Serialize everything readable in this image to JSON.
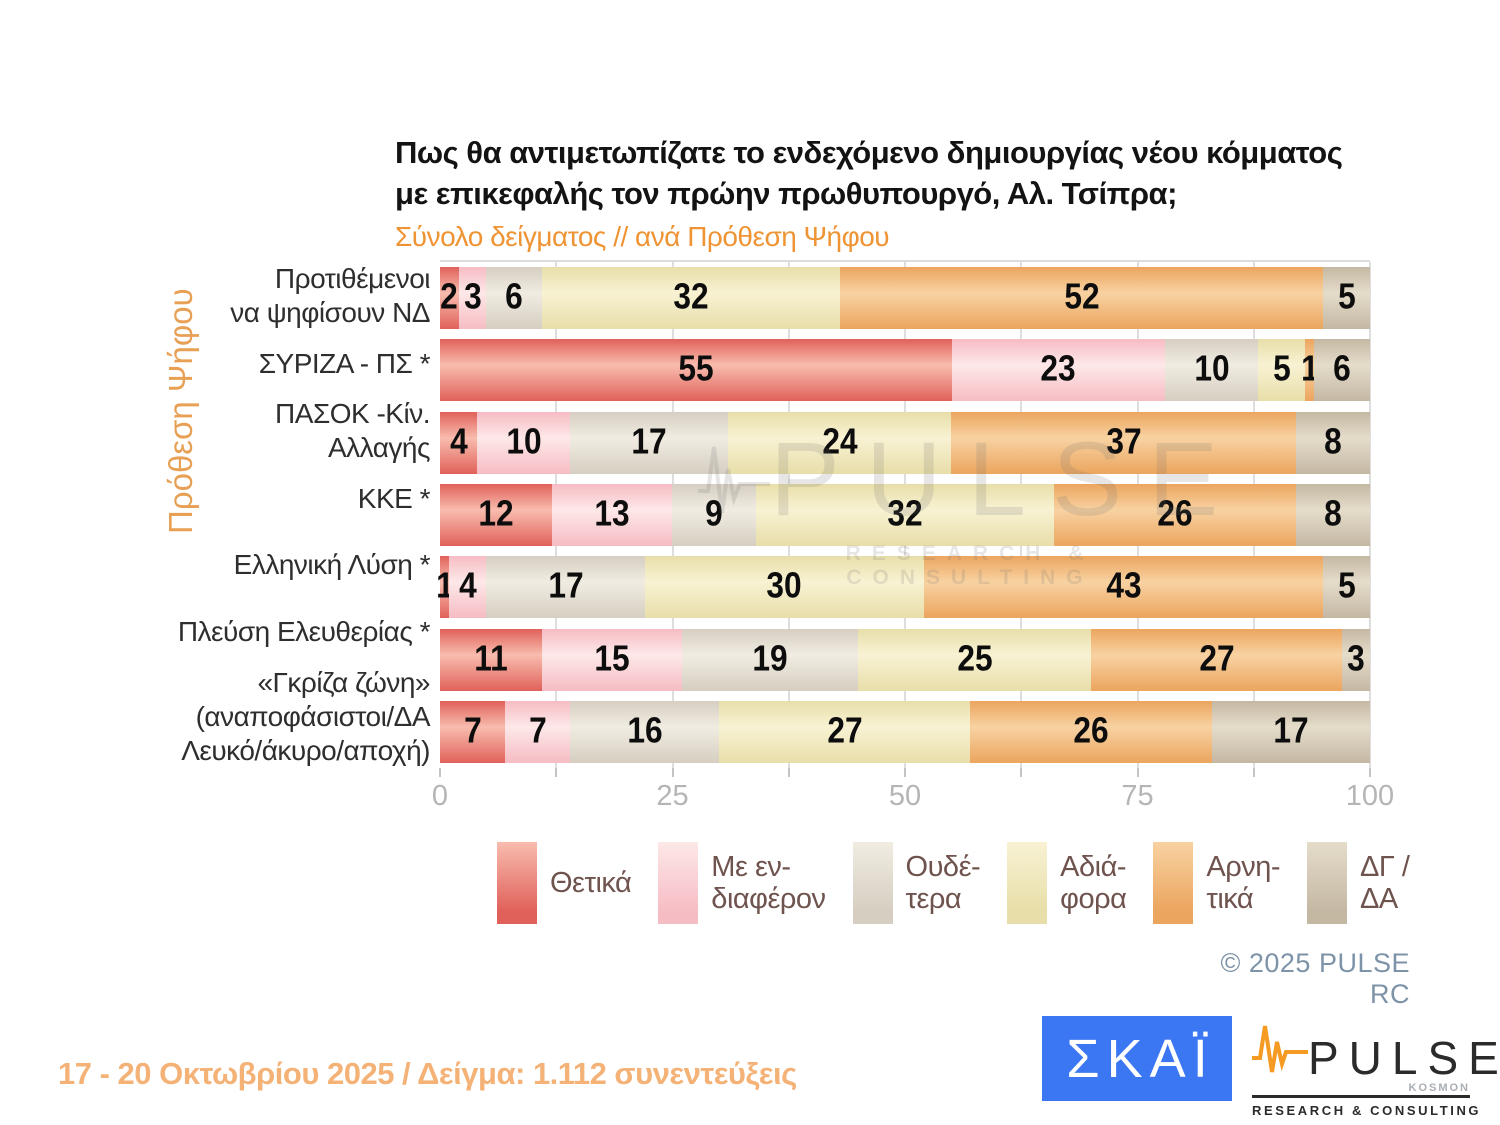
{
  "title": {
    "line1": "Πως θα αντιμετωπίζατε το ενδεχόμενο δημιουργίας νέου κόμματος",
    "line2": "με επικεφαλής τον πρώην πρωθυπουργό, Αλ. Τσίπρα;",
    "subtitle": "Σύνολο δείγματος // ανά Πρόθεση Ψήφου"
  },
  "y_axis_label": "Πρόθεση Ψήφου",
  "chart_data": {
    "type": "bar",
    "orientation": "horizontal-stacked",
    "xlim": [
      0,
      100
    ],
    "x_ticks": [
      0,
      25,
      50,
      75,
      100
    ],
    "gridline_step": 12.5,
    "legend_position": "bottom",
    "categories": [
      "Προτιθέμενοι\nνα ψηφίσουν ΝΔ",
      "ΣΥΡΙΖΑ - ΠΣ *",
      "ΠΑΣΟΚ -Κίν.\nΑλλαγής",
      "ΚΚΕ *",
      "Ελληνική Λύση *",
      "Πλεύση Ελευθερίας *",
      "«Γκρίζα ζώνη»\n(αναποφάσιστοι/ΔΑ\nΛευκό/άκυρο/αποχή)"
    ],
    "series": [
      {
        "name": "Θετικά",
        "legend_label": "Θετικά",
        "color_dark": "#e0615a",
        "color_light": "#f8bcae",
        "values": [
          2,
          55,
          4,
          12,
          1,
          11,
          7
        ]
      },
      {
        "name": "Με ενδιαφέρον",
        "legend_label": "Με εν-\nδιαφέρον",
        "color_dark": "#f6bcc4",
        "color_light": "#fde8e8",
        "values": [
          3,
          23,
          10,
          13,
          4,
          15,
          7
        ]
      },
      {
        "name": "Ουδέτερα",
        "legend_label": "Ουδέ-\nτερα",
        "color_dark": "#d5cec1",
        "color_light": "#f1ece2",
        "values": [
          6,
          10,
          17,
          9,
          17,
          19,
          16
        ]
      },
      {
        "name": "Αδιάφορα",
        "legend_label": "Αδιά-\nφορα",
        "color_dark": "#e8dea9",
        "color_light": "#f8f2d3",
        "values": [
          32,
          5,
          24,
          32,
          30,
          25,
          27
        ]
      },
      {
        "name": "Αρνητικά",
        "legend_label": "Αρνη-\nτικά",
        "color_dark": "#eba55e",
        "color_light": "#f8d2a2",
        "values": [
          52,
          1,
          37,
          26,
          43,
          27,
          26
        ]
      },
      {
        "name": "ΔΓ / ΔΑ",
        "legend_label": "ΔΓ /\nΔΑ",
        "color_dark": "#c4b8a3",
        "color_light": "#e5dcca",
        "values": [
          5,
          6,
          8,
          8,
          5,
          3,
          17
        ]
      }
    ]
  },
  "watermark": {
    "word": "PULSE",
    "sub": "RESEARCH & CONSULTING"
  },
  "copyright": "©  2025  PULSE RC",
  "survey_info": "17 - 20 Οκτωβρίου 2025  /  Δείγμα:  1.112 συνεντεύξεις",
  "logos": {
    "skai": {
      "text": "ΣΚΑΪ",
      "bg_color": "#3b76f3"
    },
    "pulse": {
      "word": "PULSE",
      "kosmon": "KOSMON",
      "sub": "RESEARCH & CONSULTING",
      "accent_color": "#f59a23"
    }
  }
}
